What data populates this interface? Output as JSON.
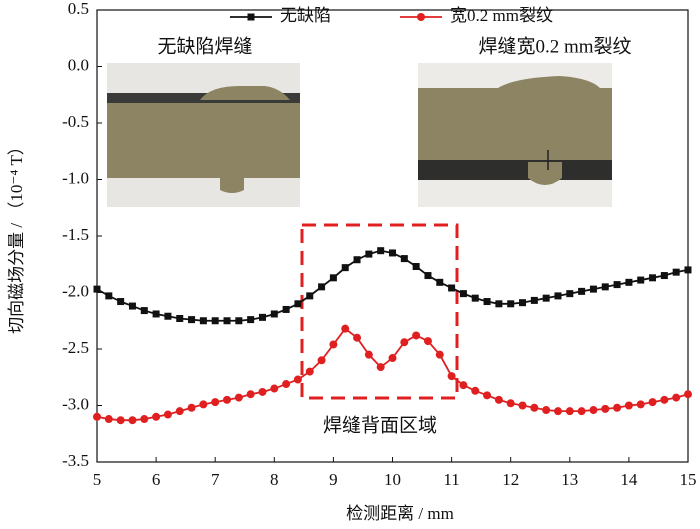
{
  "chart_data": {
    "type": "line",
    "y_label": "切向磁场分量 / （10⁻⁴ T）",
    "x_label": "检测距离 / mm",
    "annotations": [
      "无缺陷焊缝",
      "焊缝宽0.2 mm裂纹",
      "焊缝背面区域"
    ],
    "x": [
      5,
      5.2,
      5.4,
      5.6,
      5.8,
      6,
      6.2,
      6.4,
      6.6,
      6.8,
      7,
      7.2,
      7.4,
      7.6,
      7.8,
      8,
      8.2,
      8.4,
      8.6,
      8.8,
      9,
      9.2,
      9.4,
      9.6,
      9.8,
      10,
      10.2,
      10.4,
      10.6,
      10.8,
      11,
      11.2,
      11.4,
      11.6,
      11.8,
      12,
      12.2,
      12.4,
      12.6,
      12.8,
      13,
      13.2,
      13.4,
      13.6,
      13.8,
      14,
      14.2,
      14.4,
      14.6,
      14.8,
      15
    ],
    "series": [
      {
        "name": "无缺陷",
        "color": "#111111",
        "marker": "square",
        "values": [
          -1.97,
          -2.03,
          -2.08,
          -2.12,
          -2.16,
          -2.19,
          -2.21,
          -2.23,
          -2.24,
          -2.25,
          -2.25,
          -2.25,
          -2.25,
          -2.24,
          -2.22,
          -2.19,
          -2.15,
          -2.1,
          -2.03,
          -1.95,
          -1.87,
          -1.78,
          -1.71,
          -1.66,
          -1.63,
          -1.65,
          -1.7,
          -1.77,
          -1.85,
          -1.91,
          -1.96,
          -2.01,
          -2.05,
          -2.08,
          -2.1,
          -2.1,
          -2.09,
          -2.07,
          -2.05,
          -2.03,
          -2.01,
          -1.99,
          -1.97,
          -1.95,
          -1.93,
          -1.91,
          -1.89,
          -1.87,
          -1.85,
          -1.82,
          -1.8
        ]
      },
      {
        "name": "宽0.2 mm裂纹",
        "color": "#e02020",
        "marker": "circle",
        "values": [
          -3.1,
          -3.12,
          -3.13,
          -3.13,
          -3.12,
          -3.1,
          -3.08,
          -3.05,
          -3.02,
          -2.99,
          -2.97,
          -2.95,
          -2.93,
          -2.9,
          -2.88,
          -2.85,
          -2.81,
          -2.77,
          -2.7,
          -2.6,
          -2.46,
          -2.32,
          -2.4,
          -2.55,
          -2.66,
          -2.58,
          -2.44,
          -2.38,
          -2.43,
          -2.55,
          -2.74,
          -2.82,
          -2.87,
          -2.91,
          -2.95,
          -2.98,
          -3.0,
          -3.02,
          -3.04,
          -3.05,
          -3.05,
          -3.05,
          -3.04,
          -3.03,
          -3.02,
          -3.0,
          -2.99,
          -2.97,
          -2.95,
          -2.93,
          -2.9
        ]
      }
    ],
    "xlim": [
      5,
      15
    ],
    "xticks": [
      5,
      6,
      7,
      8,
      9,
      10,
      11,
      12,
      13,
      14,
      15
    ],
    "ylim": [
      -3.5,
      0.5
    ],
    "yticks": [
      -3.5,
      {
        "value": -3,
        "label": "-3.0"
      },
      -2.5,
      {
        "value": -2,
        "label": "-2.0"
      },
      -1.5,
      {
        "value": -1,
        "label": "-1.0"
      },
      -0.5,
      {
        "value": 0,
        "label": "0.0"
      },
      0.5
    ]
  }
}
